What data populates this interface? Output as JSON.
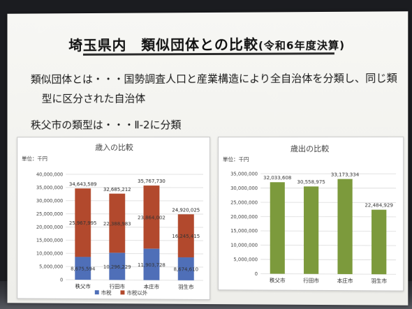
{
  "slide": {
    "title_main": "埼玉県内　類似団体との比較",
    "title_sub": "(令和6年度決算)",
    "line1": "類似団体とは・・・国勢調査人口と産業構造により全自治体を分類し、同じ類",
    "line2": "型に区分された自治体",
    "line3": "秩父市の類型は・・・Ⅱ-2に分類"
  },
  "chart_data": [
    {
      "type": "bar",
      "stacked": true,
      "title": "歳入の比較",
      "unit_label": "単位：千円",
      "categories": [
        "秩父市",
        "行田市",
        "本庄市",
        "羽生市"
      ],
      "ylim": [
        0,
        40000000
      ],
      "yticks": [
        "40,000,000",
        "35,000,000",
        "30,000,000",
        "25,000,000",
        "20,000,000",
        "15,000,000",
        "10,000,000",
        "5,000,000",
        "0"
      ],
      "series": [
        {
          "name": "市税",
          "color": "#4f6fb8",
          "values": [
            8675594,
            10296229,
            11903728,
            8674610
          ],
          "labels": [
            "8,675,594",
            "10,296,229",
            "11,903,728",
            "8,674,610"
          ]
        },
        {
          "name": "市税以外",
          "color": "#b2492d",
          "values": [
            25967995,
            22388983,
            23864002,
            16245415
          ],
          "labels": [
            "25,967,995",
            "22,388,983",
            "23,864,002",
            "16,245,415"
          ]
        }
      ],
      "totals": [
        "34,643,589",
        "32,685,212",
        "35,767,730",
        "24,920,025"
      ],
      "legend_position": "bottom",
      "grid": true
    },
    {
      "type": "bar",
      "title": "歳出の比較",
      "unit_label": "単位：千円",
      "categories": [
        "秩父市",
        "行田市",
        "本庄市",
        "羽生市"
      ],
      "ylim": [
        0,
        35000000
      ],
      "yticks": [
        "35,000,000",
        "30,000,000",
        "25,000,000",
        "20,000,000",
        "15,000,000",
        "10,000,000",
        "5,000,000",
        "0"
      ],
      "series": [
        {
          "color": "#7c9a3c",
          "values": [
            32033608,
            30558975,
            33173334,
            22484929
          ],
          "labels": [
            "32,033,608",
            "30,558,975",
            "33,173,334",
            "22,484,929"
          ]
        }
      ],
      "grid": true
    }
  ]
}
